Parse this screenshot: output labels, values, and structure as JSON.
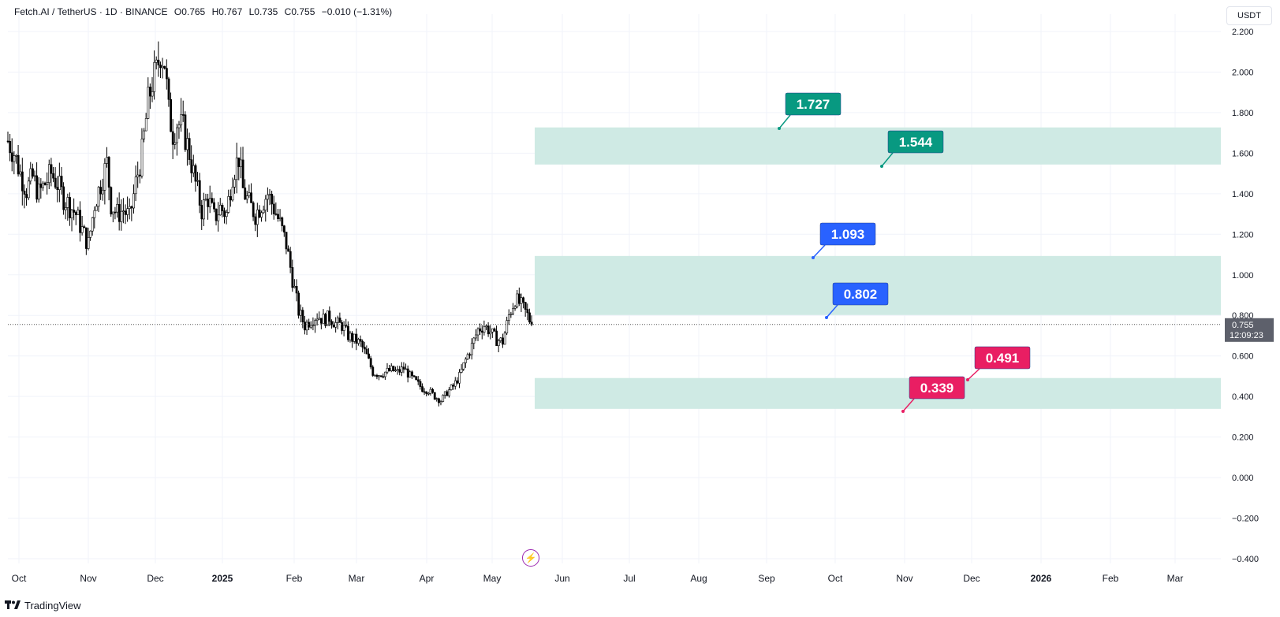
{
  "header": {
    "symbol": "Fetch.AI / TetherUS · 1D · BINANCE",
    "open": "O0.765",
    "high": "H0.767",
    "low": "L0.735",
    "close": "C0.755",
    "change": "−0.010 (−1.31%)"
  },
  "currency_button": "USDT",
  "last_price": {
    "value": "0.755",
    "countdown": "12:09:23"
  },
  "footer": {
    "brand": "TradingView"
  },
  "colors": {
    "up_candle": "#ffffff",
    "down_candle": "#000000",
    "zone_fill": "#cfeae4",
    "teal_label": "#089981",
    "blue_label": "#2962ff",
    "pink_label": "#e91e63",
    "price_tag": "#5d606b"
  },
  "chart_data": {
    "type": "candlestick",
    "title": "Fetch.AI / TetherUS · 1D · BINANCE",
    "ylim": [
      -0.4,
      2.2
    ],
    "yticks": [
      "2.200",
      "2.000",
      "1.800",
      "1.600",
      "1.400",
      "1.200",
      "1.000",
      "0.800",
      "0.600",
      "0.400",
      "0.200",
      "0.000",
      "−0.200",
      "−0.400"
    ],
    "ytick_values": [
      2.2,
      2.0,
      1.8,
      1.6,
      1.4,
      1.2,
      1.0,
      0.8,
      0.6,
      0.4,
      0.2,
      0.0,
      -0.2,
      -0.4
    ],
    "xticks": [
      "Oct",
      "Nov",
      "Dec",
      "2025",
      "Feb",
      "Mar",
      "Apr",
      "May",
      "Jun",
      "Jul",
      "Aug",
      "Sep",
      "Oct",
      "Nov",
      "Dec",
      "2026",
      "Feb",
      "Mar"
    ],
    "xtick_bold": [
      "2025",
      "2026"
    ],
    "price_path": [
      [
        0,
        1.66
      ],
      [
        3,
        1.6
      ],
      [
        6,
        1.5
      ],
      [
        9,
        1.42
      ],
      [
        12,
        1.48
      ],
      [
        15,
        1.4
      ],
      [
        18,
        1.45
      ],
      [
        21,
        1.5
      ],
      [
        24,
        1.45
      ],
      [
        27,
        1.38
      ],
      [
        30,
        1.34
      ],
      [
        33,
        1.3
      ],
      [
        36,
        1.22
      ],
      [
        39,
        1.15
      ],
      [
        42,
        1.35
      ],
      [
        45,
        1.45
      ],
      [
        48,
        1.55
      ],
      [
        50,
        1.35
      ],
      [
        53,
        1.3
      ],
      [
        56,
        1.32
      ],
      [
        59,
        1.28
      ],
      [
        62,
        1.45
      ],
      [
        65,
        1.6
      ],
      [
        68,
        1.85
      ],
      [
        70,
        1.95
      ],
      [
        72,
        2.0
      ],
      [
        74,
        2.1
      ],
      [
        76,
        2.05
      ],
      [
        78,
        1.8
      ],
      [
        80,
        1.7
      ],
      [
        82,
        1.75
      ],
      [
        85,
        1.72
      ],
      [
        88,
        1.6
      ],
      [
        91,
        1.45
      ],
      [
        94,
        1.32
      ],
      [
        97,
        1.38
      ],
      [
        100,
        1.28
      ],
      [
        103,
        1.33
      ],
      [
        106,
        1.3
      ],
      [
        109,
        1.5
      ],
      [
        112,
        1.58
      ],
      [
        114,
        1.42
      ],
      [
        117,
        1.35
      ],
      [
        120,
        1.3
      ],
      [
        123,
        1.35
      ],
      [
        126,
        1.4
      ],
      [
        129,
        1.33
      ],
      [
        132,
        1.25
      ],
      [
        135,
        1.15
      ],
      [
        138,
        0.98
      ],
      [
        141,
        0.82
      ],
      [
        144,
        0.75
      ],
      [
        147,
        0.78
      ],
      [
        150,
        0.8
      ],
      [
        153,
        0.78
      ],
      [
        156,
        0.79
      ],
      [
        159,
        0.76
      ],
      [
        162,
        0.75
      ],
      [
        165,
        0.7
      ],
      [
        168,
        0.68
      ],
      [
        171,
        0.66
      ],
      [
        174,
        0.6
      ],
      [
        177,
        0.52
      ],
      [
        180,
        0.51
      ],
      [
        183,
        0.52
      ],
      [
        186,
        0.53
      ],
      [
        189,
        0.52
      ],
      [
        192,
        0.54
      ],
      [
        195,
        0.5
      ],
      [
        198,
        0.47
      ],
      [
        201,
        0.44
      ],
      [
        204,
        0.43
      ],
      [
        207,
        0.4
      ],
      [
        210,
        0.38
      ],
      [
        213,
        0.42
      ],
      [
        216,
        0.45
      ],
      [
        219,
        0.5
      ],
      [
        222,
        0.58
      ],
      [
        225,
        0.65
      ],
      [
        228,
        0.73
      ],
      [
        231,
        0.75
      ],
      [
        234,
        0.72
      ],
      [
        237,
        0.68
      ],
      [
        240,
        0.67
      ],
      [
        243,
        0.8
      ],
      [
        246,
        0.88
      ],
      [
        249,
        0.85
      ],
      [
        252,
        0.8
      ],
      [
        254,
        0.755
      ]
    ],
    "total_days": 254,
    "last_price": 0.755,
    "zones": [
      {
        "from": 1.544,
        "to": 1.727
      },
      {
        "from": 0.802,
        "to": 1.093
      },
      {
        "from": 0.339,
        "to": 0.491
      }
    ],
    "labels": [
      {
        "text": "1.727",
        "value": 1.727,
        "color": "teal"
      },
      {
        "text": "1.544",
        "value": 1.544,
        "color": "teal"
      },
      {
        "text": "1.093",
        "value": 1.093,
        "color": "blue"
      },
      {
        "text": "0.802",
        "value": 0.802,
        "color": "blue"
      },
      {
        "text": "0.491",
        "value": 0.491,
        "color": "pink"
      },
      {
        "text": "0.339",
        "value": 0.339,
        "color": "pink"
      }
    ]
  }
}
